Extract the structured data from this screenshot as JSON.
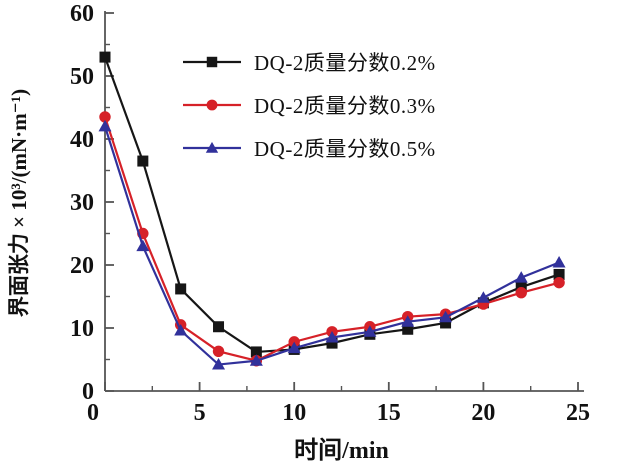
{
  "chart_data": {
    "type": "line",
    "title": "",
    "xlabel": "时间/min",
    "ylabel": "界面张力 × 10³/(mN·m⁻¹)",
    "xlim": [
      0,
      25
    ],
    "ylim": [
      0,
      60
    ],
    "x_ticks": [
      0,
      5,
      10,
      15,
      20,
      25
    ],
    "y_ticks": [
      0,
      10,
      20,
      30,
      40,
      50,
      60
    ],
    "x_minor_step": 2.5,
    "y_minor_step": 5,
    "grid": false,
    "legend_position": "inside-upper-center",
    "axis_color": "#555555",
    "x": [
      0,
      2,
      4,
      6,
      8,
      10,
      12,
      14,
      16,
      18,
      20,
      22,
      24
    ],
    "series": [
      {
        "name": "DQ-2质量分数0.2%",
        "marker": "square",
        "color": "#161616",
        "values": [
          53,
          36.5,
          16.2,
          10.2,
          6.2,
          6.6,
          7.6,
          9.0,
          9.8,
          10.8,
          14.0,
          16.5,
          18.5
        ]
      },
      {
        "name": "DQ-2质量分数0.3%",
        "marker": "circle",
        "color": "#d62128",
        "values": [
          43.5,
          25.0,
          10.5,
          6.3,
          4.8,
          7.8,
          9.4,
          10.2,
          11.8,
          12.2,
          13.8,
          15.6,
          17.2
        ]
      },
      {
        "name": "DQ-2质量分数0.5%",
        "marker": "triangle",
        "color": "#31319b",
        "values": [
          42.0,
          23.0,
          9.6,
          4.2,
          4.8,
          6.8,
          8.5,
          9.4,
          11.0,
          11.7,
          14.8,
          18.0,
          20.4
        ]
      }
    ]
  }
}
